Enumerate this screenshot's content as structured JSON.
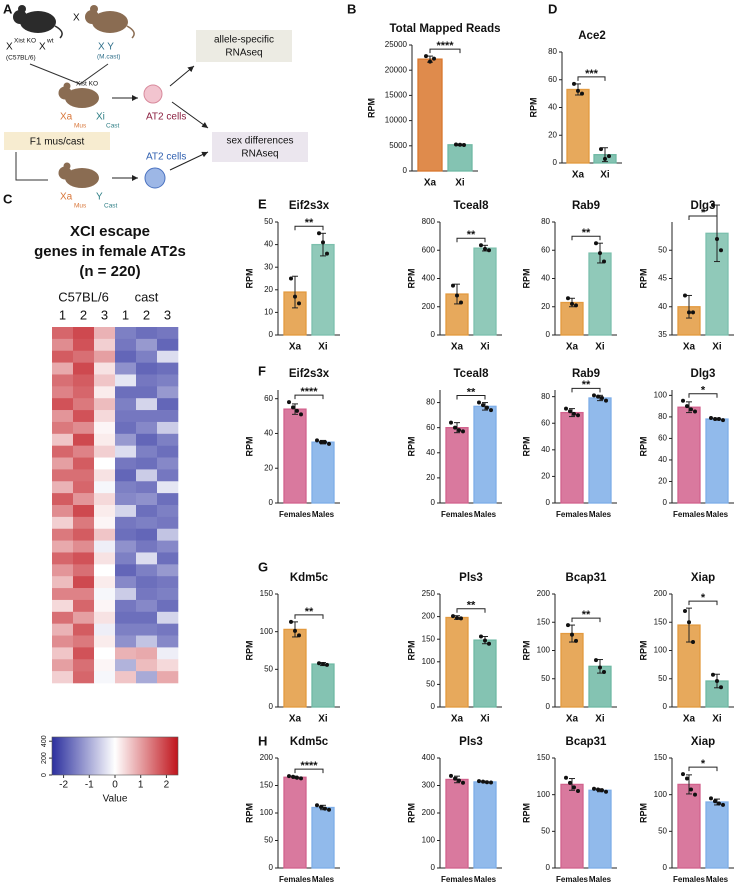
{
  "diagram": {
    "panel": "A",
    "cross": "X",
    "female_parent": {
      "x1": "X",
      "x1_sup": "Xist KO",
      "x2": "X",
      "x2_sup": "wt",
      "strain": "(C57BL/6)"
    },
    "male_parent": {
      "genotype": "X Y",
      "strain": "(M.cast)"
    },
    "f1_female": {
      "xa": "Xa",
      "xa_sub": "Mus",
      "xi": "Xi",
      "xi_sup": "Xist KO",
      "xi_sub": "Cast"
    },
    "cells_female": "AT2 cells",
    "box_allele": [
      "allele-specific",
      "RNAseq"
    ],
    "box_sex": [
      "sex differences",
      "RNAseq"
    ],
    "f1_label": "F1 mus/cast",
    "cells_male": "AT2 cells",
    "f1_male": {
      "xa": "Xa",
      "xa_sub": "Mus",
      "y": "Y",
      "y_sub": "Cast"
    }
  },
  "heatmap": {
    "panel": "C",
    "title": [
      "XCI escape",
      "genes in female AT2s",
      "(n = 220)"
    ],
    "groups": [
      "C57BL/6",
      "cast"
    ],
    "columns": [
      "1",
      "2",
      "3",
      "1",
      "2",
      "3"
    ],
    "colors": [
      "#2b2f9e",
      "#ffffff",
      "#c0141c"
    ],
    "values": [
      [
        1.6,
        1.9,
        0.8,
        -1.5,
        -1.7,
        -1.6
      ],
      [
        1.2,
        1.8,
        0.5,
        -1.6,
        -1.2,
        -1.8
      ],
      [
        1.7,
        1.5,
        1.0,
        -1.8,
        -1.5,
        -0.4
      ],
      [
        0.9,
        1.9,
        0.3,
        -1.3,
        -1.8,
        -1.7
      ],
      [
        1.5,
        1.7,
        0.6,
        -0.3,
        -1.6,
        -1.5
      ],
      [
        1.3,
        1.6,
        0.2,
        -1.7,
        -1.7,
        -1.2
      ],
      [
        1.8,
        1.4,
        0.7,
        -1.5,
        -0.5,
        -1.8
      ],
      [
        1.1,
        1.8,
        0.4,
        -1.6,
        -1.6,
        -1.6
      ],
      [
        1.4,
        1.2,
        0.1,
        -1.7,
        -1.4,
        -0.6
      ],
      [
        0.6,
        1.9,
        0.2,
        -1.2,
        -1.8,
        -1.5
      ],
      [
        1.6,
        1.3,
        0.5,
        -0.4,
        -1.5,
        -1.7
      ],
      [
        1.0,
        1.7,
        0.0,
        -1.6,
        -1.7,
        -1.4
      ],
      [
        1.5,
        1.5,
        0.3,
        -1.8,
        -0.6,
        -1.6
      ],
      [
        0.8,
        1.6,
        -0.1,
        -1.5,
        -1.6,
        -0.3
      ],
      [
        1.7,
        1.1,
        0.4,
        -1.4,
        -1.3,
        -1.7
      ],
      [
        1.2,
        1.9,
        0.2,
        -0.5,
        -1.7,
        -1.5
      ],
      [
        0.5,
        1.4,
        0.1,
        -1.6,
        -1.5,
        -1.6
      ],
      [
        1.4,
        1.7,
        0.6,
        -1.7,
        -1.8,
        -0.7
      ],
      [
        0.9,
        1.2,
        -0.2,
        -1.3,
        -1.6,
        -1.4
      ],
      [
        1.6,
        1.8,
        0.3,
        -1.5,
        -0.4,
        -1.7
      ],
      [
        1.1,
        1.5,
        0.0,
        -1.8,
        -1.5,
        -1.2
      ],
      [
        0.7,
        1.9,
        0.2,
        -1.4,
        -1.7,
        -1.6
      ],
      [
        1.3,
        1.3,
        -0.1,
        -0.6,
        -1.6,
        -1.5
      ],
      [
        0.4,
        1.6,
        0.1,
        -1.6,
        -1.4,
        -1.7
      ],
      [
        1.5,
        1.0,
        0.3,
        -1.7,
        -1.7,
        -0.5
      ],
      [
        0.8,
        1.7,
        -0.2,
        -1.5,
        -1.5,
        -1.6
      ],
      [
        1.2,
        1.4,
        0.2,
        -1.3,
        -0.7,
        -1.4
      ],
      [
        0.6,
        1.8,
        0.0,
        0.8,
        0.9,
        -0.2
      ],
      [
        1.0,
        1.5,
        0.1,
        -0.9,
        0.7,
        0.4
      ],
      [
        0.5,
        1.6,
        -0.1,
        0.6,
        -1.0,
        0.9
      ]
    ],
    "colorbar": {
      "range": [
        -2.45,
        2.45
      ],
      "ticks": [
        -2,
        -1,
        0,
        1,
        2
      ],
      "label": "Value",
      "hist_ylim": [
        0,
        450
      ],
      "hist_yticks": [
        0,
        200,
        400
      ]
    }
  },
  "chart_data": [
    {
      "type": "bar",
      "panel": "B",
      "title": "Total Mapped Reads",
      "ylabel": "RPM",
      "categories": [
        "Xa",
        "Xi"
      ],
      "values": [
        22200,
        5200
      ],
      "errors": [
        600,
        150
      ],
      "points": [
        [
          22800,
          21700,
          22300
        ],
        [
          5250,
          5200,
          5150
        ]
      ],
      "colors": [
        "#d9772d",
        "#6fb9a4"
      ],
      "ylim": [
        0,
        25000
      ],
      "yticks": [
        0,
        5000,
        10000,
        15000,
        20000,
        25000
      ],
      "significance": "****"
    },
    {
      "type": "bar",
      "panel": "D",
      "title": "Ace2",
      "ylabel": "RPM",
      "categories": [
        "Xa",
        "Xi"
      ],
      "values": [
        53,
        6
      ],
      "errors": [
        4,
        5
      ],
      "points": [
        [
          57,
          52,
          50
        ],
        [
          10,
          3,
          5
        ]
      ],
      "colors": [
        "#e39a3f",
        "#6fb9a4"
      ],
      "ylim": [
        0,
        80
      ],
      "yticks": [
        0,
        20,
        40,
        60,
        80
      ],
      "significance": "***"
    },
    {
      "type": "bar",
      "panel": "E",
      "title": "Eif2s3x",
      "ylabel": "RPM",
      "categories": [
        "Xa",
        "Xi"
      ],
      "values": [
        19,
        40
      ],
      "errors": [
        7,
        5
      ],
      "points": [
        [
          25,
          17,
          14
        ],
        [
          45,
          41,
          36
        ]
      ],
      "colors": [
        "#e39a3f",
        "#7cc0ad"
      ],
      "ylim": [
        0,
        50
      ],
      "yticks": [
        0,
        10,
        20,
        30,
        40,
        50
      ],
      "significance": "**"
    },
    {
      "type": "bar",
      "title": "Tceal8",
      "ylabel": "RPM",
      "categories": [
        "Xa",
        "Xi"
      ],
      "values": [
        290,
        615
      ],
      "errors": [
        70,
        20
      ],
      "points": [
        [
          350,
          280,
          230
        ],
        [
          635,
          610,
          600
        ]
      ],
      "colors": [
        "#e39a3f",
        "#7cc0ad"
      ],
      "ylim": [
        0,
        800
      ],
      "yticks": [
        0,
        200,
        400,
        600,
        800
      ],
      "significance": "**"
    },
    {
      "type": "bar",
      "title": "Rab9",
      "ylabel": "RPM",
      "categories": [
        "Xa",
        "Xi"
      ],
      "values": [
        23,
        58
      ],
      "errors": [
        3,
        7
      ],
      "points": [
        [
          26,
          22,
          21
        ],
        [
          65,
          58,
          52
        ]
      ],
      "colors": [
        "#e39a3f",
        "#7cc0ad"
      ],
      "ylim": [
        0,
        80
      ],
      "yticks": [
        0,
        20,
        40,
        60,
        80
      ],
      "significance": "**"
    },
    {
      "type": "bar",
      "title": "Dlg3",
      "ylabel": "RPM",
      "categories": [
        "Xa",
        "Xi"
      ],
      "values": [
        40,
        53
      ],
      "errors": [
        2,
        5
      ],
      "points": [
        [
          42,
          39,
          39
        ],
        [
          58,
          52,
          50
        ]
      ],
      "colors": [
        "#e39a3f",
        "#7cc0ad"
      ],
      "ylim": [
        35,
        55
      ],
      "yticks": [
        35,
        40,
        45,
        50
      ],
      "significance": "*"
    },
    {
      "type": "bar",
      "panel": "F",
      "title": "Eif2s3x",
      "ylabel": "RPM",
      "categories": [
        "Females",
        "Males"
      ],
      "values": [
        54,
        35
      ],
      "errors": [
        3,
        1
      ],
      "points": [
        [
          58,
          55,
          53,
          51
        ],
        [
          36,
          35,
          35,
          34
        ]
      ],
      "colors": [
        "#d2628d",
        "#7eaee8"
      ],
      "ylim": [
        0,
        65
      ],
      "yticks": [
        0,
        20,
        40,
        60
      ],
      "significance": "****"
    },
    {
      "type": "bar",
      "title": "Tceal8",
      "ylabel": "RPM",
      "categories": [
        "Females",
        "Males"
      ],
      "values": [
        60,
        77
      ],
      "errors": [
        4,
        3
      ],
      "points": [
        [
          64,
          60,
          58,
          57
        ],
        [
          80,
          78,
          76,
          74
        ]
      ],
      "colors": [
        "#d2628d",
        "#7eaee8"
      ],
      "ylim": [
        0,
        90
      ],
      "yticks": [
        0,
        20,
        40,
        60,
        80
      ],
      "significance": "**"
    },
    {
      "type": "bar",
      "title": "Rab9",
      "ylabel": "RPM",
      "categories": [
        "Females",
        "Males"
      ],
      "values": [
        68,
        79
      ],
      "errors": [
        3,
        2
      ],
      "points": [
        [
          71,
          69,
          67,
          66
        ],
        [
          81,
          80,
          79,
          77
        ]
      ],
      "colors": [
        "#d2628d",
        "#7eaee8"
      ],
      "ylim": [
        0,
        85
      ],
      "yticks": [
        0,
        20,
        40,
        60,
        80
      ],
      "significance": "**"
    },
    {
      "type": "bar",
      "title": "Dlg3",
      "ylabel": "RPM",
      "categories": [
        "Females",
        "Males"
      ],
      "values": [
        89,
        78
      ],
      "errors": [
        5,
        1
      ],
      "points": [
        [
          95,
          90,
          87,
          85
        ],
        [
          79,
          78,
          78,
          77
        ]
      ],
      "colors": [
        "#d2628d",
        "#7eaee8"
      ],
      "ylim": [
        0,
        105
      ],
      "yticks": [
        0,
        20,
        40,
        60,
        80,
        100
      ],
      "significance": "*"
    },
    {
      "type": "bar",
      "panel": "G",
      "title": "Kdm5c",
      "ylabel": "RPM",
      "categories": [
        "Xa",
        "Xi"
      ],
      "values": [
        103,
        57
      ],
      "errors": [
        10,
        2
      ],
      "points": [
        [
          113,
          101,
          95
        ],
        [
          58,
          57,
          56
        ]
      ],
      "colors": [
        "#e39a3f",
        "#6fb9a4"
      ],
      "ylim": [
        0,
        150
      ],
      "yticks": [
        0,
        50,
        100,
        150
      ],
      "significance": "**"
    },
    {
      "type": "bar",
      "title": "Pls3",
      "ylabel": "RPM",
      "categories": [
        "Xa",
        "Xi"
      ],
      "values": [
        198,
        148
      ],
      "errors": [
        4,
        8
      ],
      "points": [
        [
          201,
          197,
          196
        ],
        [
          156,
          147,
          140
        ]
      ],
      "colors": [
        "#e39a3f",
        "#6fb9a4"
      ],
      "ylim": [
        0,
        250
      ],
      "yticks": [
        0,
        50,
        100,
        150,
        200,
        250
      ],
      "significance": "**"
    },
    {
      "type": "bar",
      "title": "Bcap31",
      "ylabel": "RPM",
      "categories": [
        "Xa",
        "Xi"
      ],
      "values": [
        130,
        72
      ],
      "errors": [
        15,
        12
      ],
      "points": [
        [
          145,
          128,
          117
        ],
        [
          83,
          70,
          62
        ]
      ],
      "colors": [
        "#e39a3f",
        "#6fb9a4"
      ],
      "ylim": [
        0,
        200
      ],
      "yticks": [
        0,
        50,
        100,
        150,
        200
      ],
      "significance": "**"
    },
    {
      "type": "bar",
      "title": "Xiap",
      "ylabel": "RPM",
      "categories": [
        "Xa",
        "Xi"
      ],
      "values": [
        145,
        46
      ],
      "errors": [
        30,
        12
      ],
      "points": [
        [
          170,
          150,
          115
        ],
        [
          57,
          46,
          35
        ]
      ],
      "colors": [
        "#e39a3f",
        "#6fb9a4"
      ],
      "ylim": [
        0,
        200
      ],
      "yticks": [
        0,
        50,
        100,
        150,
        200
      ],
      "significance": "*"
    },
    {
      "type": "bar",
      "panel": "H",
      "title": "Kdm5c",
      "ylabel": "RPM",
      "categories": [
        "Females",
        "Males"
      ],
      "values": [
        165,
        110
      ],
      "errors": [
        2,
        4
      ],
      "points": [
        [
          167,
          166,
          164,
          163
        ],
        [
          114,
          111,
          108,
          106
        ]
      ],
      "colors": [
        "#d2628d",
        "#7eaee8"
      ],
      "ylim": [
        0,
        200
      ],
      "yticks": [
        0,
        50,
        100,
        150,
        200
      ],
      "significance": "****"
    },
    {
      "type": "bar",
      "title": "Pls3",
      "ylabel": "RPM",
      "categories": [
        "Females",
        "Males"
      ],
      "values": [
        322,
        313
      ],
      "errors": [
        12,
        3
      ],
      "points": [
        [
          335,
          325,
          318,
          310
        ],
        [
          316,
          314,
          312,
          311
        ]
      ],
      "colors": [
        "#d2628d",
        "#7eaee8"
      ],
      "ylim": [
        0,
        400
      ],
      "yticks": [
        0,
        100,
        200,
        300,
        400
      ]
    },
    {
      "type": "bar",
      "title": "Bcap31",
      "ylabel": "RPM",
      "categories": [
        "Females",
        "Males"
      ],
      "values": [
        114,
        106
      ],
      "errors": [
        8,
        2
      ],
      "points": [
        [
          123,
          116,
          110,
          105
        ],
        [
          108,
          107,
          106,
          104
        ]
      ],
      "colors": [
        "#d2628d",
        "#7eaee8"
      ],
      "ylim": [
        0,
        150
      ],
      "yticks": [
        0,
        50,
        100,
        150
      ]
    },
    {
      "type": "bar",
      "title": "Xiap",
      "ylabel": "RPM",
      "categories": [
        "Females",
        "Males"
      ],
      "values": [
        114,
        90
      ],
      "errors": [
        13,
        4
      ],
      "points": [
        [
          128,
          122,
          107,
          100
        ],
        [
          95,
          91,
          88,
          86
        ]
      ],
      "colors": [
        "#d2628d",
        "#7eaee8"
      ],
      "ylim": [
        0,
        150
      ],
      "yticks": [
        0,
        50,
        100,
        150
      ],
      "significance": "*"
    }
  ]
}
